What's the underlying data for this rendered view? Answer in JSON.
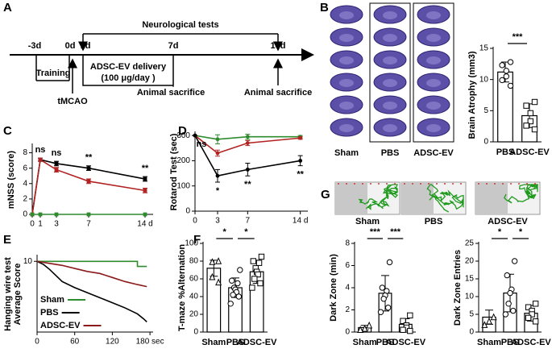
{
  "timeline": {
    "panel": "A",
    "title": "Neurological tests",
    "days": [
      "-3d",
      "0d",
      "1d",
      "7d",
      "14d"
    ],
    "training": "Training",
    "surgery": "tMCAO",
    "treatment": [
      "ADSC-EV delivery",
      "(100 μg/day )"
    ],
    "sacrifice": [
      "Animal sacrifice",
      "Animal sacrifice"
    ]
  },
  "brain_images": {
    "labels": [
      "Sham",
      "PBS",
      "ADSC-EV"
    ]
  },
  "maze_images": {
    "panel": "G",
    "labels": [
      "Sham",
      "PBS",
      "ADSC-EV"
    ]
  },
  "chart_data": [
    {
      "type": "bar",
      "panel": "B",
      "ylabel": "Brain Atrophy (mm3)",
      "categories": [
        "PBS",
        "ADSC-EV"
      ],
      "values": [
        11.2,
        4.2
      ],
      "errors": [
        1.6,
        1.9
      ],
      "points": [
        [
          12.8,
          12.3,
          11.4,
          10.5,
          9.9,
          9.0
        ],
        [
          6.4,
          5.8,
          4.6,
          3.3,
          2.6,
          2.0
        ]
      ],
      "markers": [
        "circle",
        "square"
      ],
      "color": "#ffffff",
      "ylim": [
        0,
        15
      ],
      "yticks": [
        0,
        5,
        10,
        15
      ],
      "grid": false,
      "comparisons": [
        {
          "groups": [
            "PBS",
            "ADSC-EV"
          ],
          "label": "***"
        }
      ]
    },
    {
      "type": "line",
      "panel": "C",
      "ylabel": "mNSS (score)",
      "x": [
        0,
        1,
        3,
        7,
        14
      ],
      "series": [
        {
          "color": "#000000",
          "values": [
            0,
            7.1,
            6.6,
            6.0,
            4.6
          ],
          "errors": [
            0,
            0.2,
            0.3,
            0.3,
            0.3
          ]
        },
        {
          "color": "#b22222",
          "values": [
            0,
            7.1,
            5.8,
            4.3,
            3.1
          ],
          "errors": [
            0,
            0.2,
            0.3,
            0.3,
            0.3
          ]
        },
        {
          "color": "#2e8b2e",
          "values": [
            0,
            0,
            0,
            0,
            0
          ]
        }
      ],
      "marker": "square",
      "annotations": [
        null,
        "ns",
        "ns",
        "**",
        "**"
      ],
      "xlim": [
        0,
        15
      ],
      "xticks": [
        0,
        1,
        3,
        7,
        {
          "value": 14,
          "label": "14 d"
        }
      ],
      "ylim": [
        0,
        9
      ],
      "yticks": [
        0,
        2,
        4,
        6,
        8
      ],
      "grid": false
    },
    {
      "type": "line",
      "panel": "D",
      "ylabel": "Rotarod Test (sec)",
      "x": [
        0,
        3,
        7,
        14
      ],
      "series": [
        {
          "color": "#2e8b2e",
          "values": [
            300,
            285,
            295,
            295
          ],
          "errors": [
            0,
            18,
            10,
            5
          ]
        },
        {
          "color": "#b22222",
          "values": [
            300,
            230,
            270,
            290
          ],
          "errors": [
            0,
            12,
            10,
            5
          ]
        },
        {
          "color": "#000000",
          "values": [
            300,
            140,
            165,
            200
          ],
          "errors": [
            0,
            25,
            25,
            20
          ]
        }
      ],
      "marker": "circle",
      "annotations": [
        "ns",
        "*",
        "**",
        "**"
      ],
      "xlim": [
        0,
        15
      ],
      "xticks": [
        0,
        3,
        7,
        {
          "value": 14,
          "label": "14 d"
        }
      ],
      "ylim": [
        0,
        310
      ],
      "yticks": [
        0,
        100,
        200,
        300
      ],
      "grid": false
    },
    {
      "type": "line",
      "panel": "E",
      "ylabel": [
        "Hanging wire test",
        "Average Score"
      ],
      "series": [
        {
          "name": "Sham",
          "color": "#2e8b2e",
          "x": [
            0,
            160,
            160,
            175
          ],
          "values": [
            10,
            10,
            9.5,
            9.5
          ]
        },
        {
          "name": "PBS",
          "color": "#000000",
          "x": [
            0,
            10,
            20,
            30,
            40,
            60,
            80,
            100,
            120,
            140,
            160,
            170,
            175
          ],
          "values": [
            10,
            9.7,
            9.2,
            8.6,
            8.0,
            7.4,
            6.9,
            6.4,
            5.9,
            5.4,
            4.8,
            4.3,
            4.0
          ]
        },
        {
          "name": "ADSC-EV",
          "color": "#8b1a1a",
          "x": [
            0,
            20,
            40,
            60,
            80,
            100,
            120,
            140,
            160,
            175
          ],
          "values": [
            10,
            9.8,
            9.6,
            9.3,
            9.0,
            8.8,
            8.4,
            8.0,
            7.7,
            7.5
          ]
        }
      ],
      "legend": "lower left",
      "xlim": [
        0,
        185
      ],
      "xticks": [
        0,
        60,
        120,
        {
          "value": 180,
          "label": "180 sec"
        }
      ],
      "ylim": [
        3,
        10.5
      ],
      "yticks": [
        10
      ],
      "grid": false
    },
    {
      "type": "bar",
      "panel": "F",
      "ylabel": "T-maze %Alternation",
      "categories": [
        "Sham",
        "PBS",
        "ADSC-EV"
      ],
      "values": [
        72,
        50,
        68
      ],
      "errors": [
        9,
        11,
        13
      ],
      "points": [
        [
          80,
          79,
          62,
          56
        ],
        [
          70,
          58,
          55,
          50,
          48,
          45,
          42,
          40,
          32
        ],
        [
          85,
          80,
          78,
          72,
          68,
          65,
          60,
          55,
          50
        ]
      ],
      "markers": [
        "triangle",
        "circle",
        "square"
      ],
      "color": "#ffffff",
      "ylim": [
        0,
        100
      ],
      "yticks": [
        0,
        20,
        40,
        60,
        80,
        100
      ],
      "grid": false,
      "comparisons": [
        {
          "groups": [
            "Sham",
            "PBS"
          ],
          "label": "*"
        },
        {
          "groups": [
            "PBS",
            "ADSC-EV"
          ],
          "label": "*"
        }
      ]
    },
    {
      "type": "bar",
      "ylabel": "Dark Zone (min)",
      "categories": [
        "Sham",
        "PBS",
        "ADSC-EV"
      ],
      "values": [
        0.4,
        3.5,
        0.7
      ],
      "errors": [
        0.2,
        1.6,
        0.5
      ],
      "points": [
        [
          0.6,
          0.3,
          0.2
        ],
        [
          6.3,
          4.0,
          3.7,
          3.3,
          3.0,
          2.2,
          1.8
        ],
        [
          1.5,
          1.0,
          0.6,
          0.4,
          0.2,
          0.1
        ]
      ],
      "markers": [
        "triangle",
        "circle",
        "square"
      ],
      "color": "#ffffff",
      "ylim": [
        0,
        8
      ],
      "yticks": [
        0,
        2,
        4,
        6,
        8
      ],
      "grid": false,
      "comparisons": [
        {
          "groups": [
            "Sham",
            "PBS"
          ],
          "label": "***"
        },
        {
          "groups": [
            "PBS",
            "ADSC-EV"
          ],
          "label": "***"
        }
      ]
    },
    {
      "type": "bar",
      "ylabel": "Dark Zone Entries",
      "categories": [
        "Sham",
        "PBS",
        "ADSC-EV"
      ],
      "values": [
        4.2,
        11,
        5.3
      ],
      "errors": [
        2,
        5.3,
        2.2
      ],
      "points": [
        [
          4.2,
          3,
          2
        ],
        [
          20,
          16,
          12,
          11,
          8,
          6,
          5
        ],
        [
          8,
          7,
          6,
          5,
          4,
          3
        ]
      ],
      "markers": [
        "triangle",
        "circle",
        "square"
      ],
      "color": "#ffffff",
      "ylim": [
        0,
        25
      ],
      "yticks": [
        0,
        5,
        10,
        15,
        20,
        25
      ],
      "grid": false,
      "comparisons": [
        {
          "groups": [
            "Sham",
            "PBS"
          ],
          "label": "*"
        },
        {
          "groups": [
            "PBS",
            "ADSC-EV"
          ],
          "label": "*"
        }
      ]
    }
  ]
}
